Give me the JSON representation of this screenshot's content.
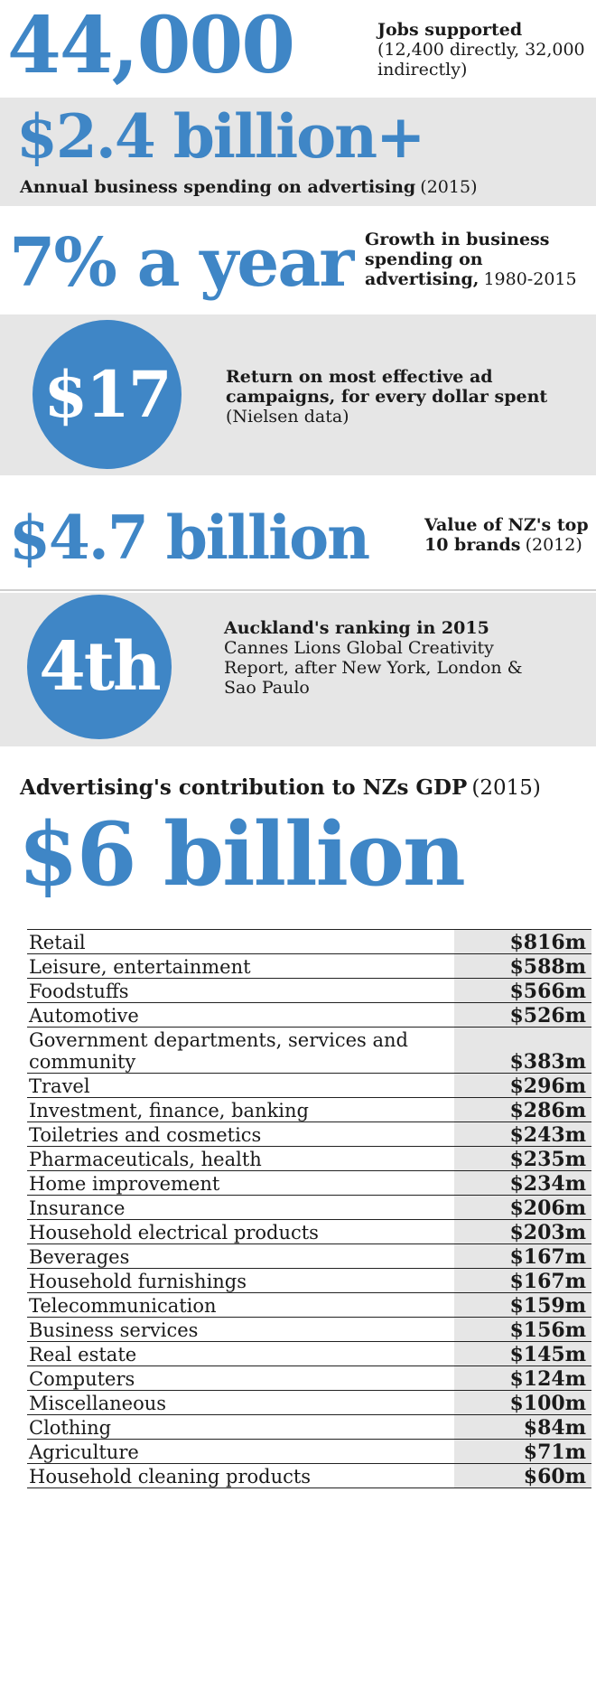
{
  "stats": {
    "jobs": {
      "figure": "44,000",
      "title": "Jobs supported",
      "detail": "(12,400 directly, 32,000 indirectly)"
    },
    "spending": {
      "figure": "$2.4 billion+",
      "title": "Annual business spending on advertising",
      "year": "(2015)"
    },
    "growth": {
      "figure": "7% a year",
      "title": "Growth in business spending on advertising,",
      "years": "1980-2015"
    },
    "return": {
      "figure": "$17",
      "title": "Return on most effective ad campaigns, for every dollar spent",
      "source": "(Nielsen data)"
    },
    "brands": {
      "figure": "$4.7 billion",
      "title": "Value of NZ's top 10 brands",
      "year": "(2012)"
    },
    "ranking": {
      "figure": "4th",
      "title": "Auckland's ranking in 2015",
      "detail": "Cannes Lions Global Creativity Report, after New York, London & Sao Paulo"
    }
  },
  "gdp": {
    "heading": "Advertising's contribution to NZs GDP",
    "year": "(2015)",
    "total": "$6 billion"
  },
  "table": {
    "rows": [
      {
        "category": "Retail",
        "value": "$816m"
      },
      {
        "category": "Leisure, entertainment",
        "value": "$588m"
      },
      {
        "category": "Foodstuffs",
        "value": "$566m"
      },
      {
        "category": "Automotive",
        "value": "$526m"
      },
      {
        "category": "Government departments, services and community",
        "value": "$383m"
      },
      {
        "category": "Travel",
        "value": "$296m"
      },
      {
        "category": "Investment, finance, banking",
        "value": "$286m"
      },
      {
        "category": "Toiletries and cosmetics",
        "value": "$243m"
      },
      {
        "category": "Pharmaceuticals, health",
        "value": "$235m"
      },
      {
        "category": "Home improvement",
        "value": "$234m"
      },
      {
        "category": "Insurance",
        "value": "$206m"
      },
      {
        "category": "Household electrical products",
        "value": "$203m"
      },
      {
        "category": "Beverages",
        "value": "$167m"
      },
      {
        "category": "Household furnishings",
        "value": "$167m"
      },
      {
        "category": "Telecommunication",
        "value": "$159m"
      },
      {
        "category": "Business services",
        "value": "$156m"
      },
      {
        "category": "Real estate",
        "value": "$145m"
      },
      {
        "category": "Computers",
        "value": "$124m"
      },
      {
        "category": "Miscellaneous",
        "value": "$100m"
      },
      {
        "category": "Clothing",
        "value": "$84m"
      },
      {
        "category": "Agriculture",
        "value": "$71m"
      },
      {
        "category": "Household cleaning products",
        "value": "$60m"
      }
    ]
  },
  "colors": {
    "accent": "#3f86c6",
    "panel": "#e6e6e6"
  }
}
